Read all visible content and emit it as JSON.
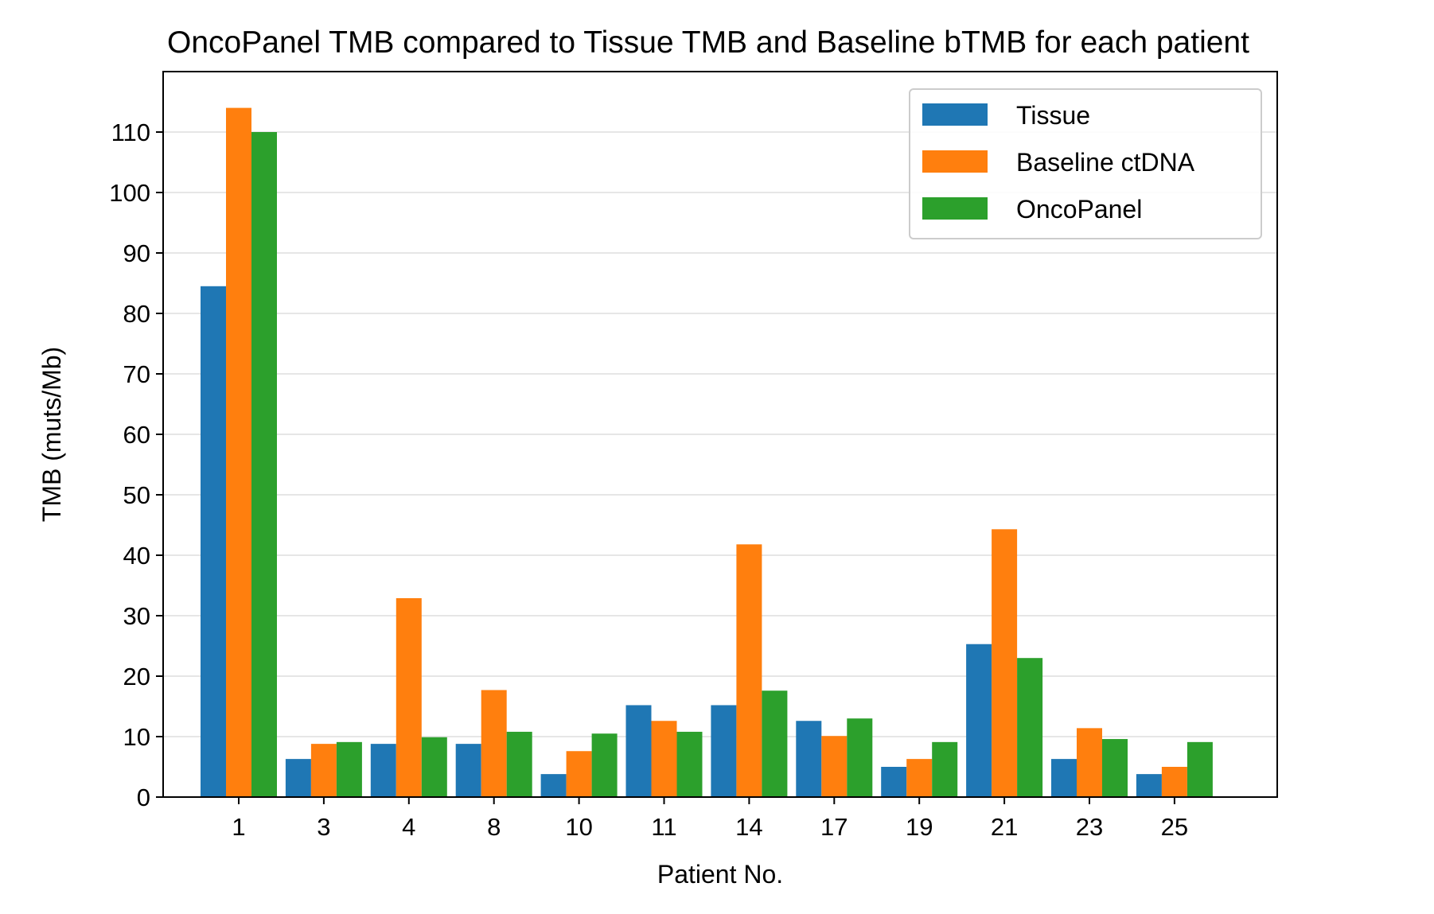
{
  "chart_data": {
    "type": "bar",
    "title": "OncoPanel TMB compared to Tissue TMB and Baseline bTMB for each patient",
    "xlabel": "Patient No.",
    "ylabel": "TMB (muts/Mb)",
    "categories": [
      "1",
      "3",
      "4",
      "8",
      "10",
      "11",
      "14",
      "17",
      "19",
      "21",
      "23",
      "25"
    ],
    "series": [
      {
        "name": "Tissue",
        "color": "#1f77b4",
        "values": [
          84.5,
          6.3,
          8.8,
          8.8,
          3.8,
          15.2,
          15.2,
          12.6,
          5.0,
          25.3,
          6.3,
          3.8
        ]
      },
      {
        "name": "Baseline ctDNA",
        "color": "#ff7f0e",
        "values": [
          114.0,
          8.8,
          32.9,
          17.7,
          7.6,
          12.6,
          41.8,
          10.1,
          6.3,
          44.3,
          11.4,
          5.0
        ]
      },
      {
        "name": "OncoPanel",
        "color": "#2ca02c",
        "values": [
          110.0,
          9.1,
          9.9,
          10.8,
          10.5,
          10.8,
          17.6,
          13.0,
          9.1,
          23.0,
          9.6,
          9.1
        ]
      }
    ],
    "ylim": [
      0,
      120
    ],
    "yticks": [
      0,
      10,
      20,
      30,
      40,
      50,
      60,
      70,
      80,
      90,
      100,
      110
    ],
    "grid": "y",
    "legend_position": "top-right"
  }
}
